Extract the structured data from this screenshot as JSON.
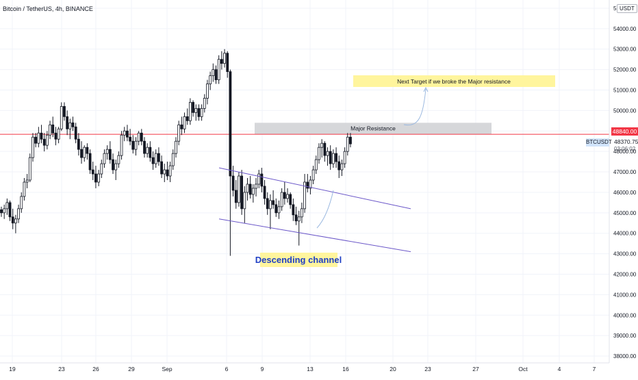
{
  "header": {
    "symbol_title": "Bitcoin / TetherUS, 4h, BINANCE",
    "currency_unit": "USDT"
  },
  "price_axis": {
    "current_price_label": "48840.00",
    "ticker": "BTCUSDT",
    "last_price": "48370.75",
    "countdown": "03:06:02"
  },
  "annotations": {
    "target_note": "Next Target if we broke the Major resistance",
    "resistance_label": "Major Resistance",
    "channel_label": "Descending channel"
  },
  "colors": {
    "candle": "#131722",
    "channel_line": "#6a56c8",
    "resistance_line": "#f23645",
    "resistance_zone": "#d6d7da",
    "note_bg": "#fff59d",
    "channel_label_bg": "#fff59d",
    "channel_label_text": "#1e3fc4",
    "arrow": "#9ab8e0"
  },
  "chart_data": {
    "type": "candlestick",
    "x_ticks": [
      "19",
      "23",
      "26",
      "29",
      "Sep",
      "6",
      "9",
      "13",
      "16",
      "20",
      "23",
      "27",
      "Oct",
      "4",
      "7"
    ],
    "y_ticks": [
      "38000.00",
      "39000.00",
      "40000.00",
      "41000.00",
      "42000.00",
      "43000.00",
      "44000.00",
      "45000.00",
      "46000.00",
      "47000.00",
      "48000.00",
      "49000.00",
      "50000.00",
      "51000.00",
      "52000.00",
      "53000.00",
      "54000.00",
      "55000.00"
    ],
    "y_range": [
      37800,
      55200
    ],
    "horizontal_line_price": 48840,
    "resistance_zone": [
      48840,
      49400
    ],
    "candles": [
      [
        45150,
        45300,
        44800,
        45000
      ],
      [
        45000,
        45400,
        44700,
        45200
      ],
      [
        45200,
        45700,
        44900,
        45500
      ],
      [
        45500,
        45600,
        44600,
        44800
      ],
      [
        44800,
        45200,
        44200,
        44500
      ],
      [
        44500,
        44900,
        44000,
        44700
      ],
      [
        44700,
        45400,
        44500,
        45200
      ],
      [
        45200,
        46000,
        45000,
        45800
      ],
      [
        45800,
        46700,
        45600,
        46500
      ],
      [
        46500,
        46900,
        46200,
        46600
      ],
      [
        46600,
        47900,
        46500,
        47700
      ],
      [
        47700,
        48900,
        47500,
        48700
      ],
      [
        48700,
        48900,
        48200,
        48400
      ],
      [
        48400,
        49200,
        48200,
        48900
      ],
      [
        48900,
        49300,
        48400,
        48600
      ],
      [
        48600,
        48900,
        48000,
        48300
      ],
      [
        48300,
        49000,
        48100,
        48800
      ],
      [
        48800,
        49500,
        48600,
        49300
      ],
      [
        49300,
        49700,
        48700,
        48900
      ],
      [
        48900,
        49200,
        48300,
        48600
      ],
      [
        48600,
        49200,
        48400,
        49100
      ],
      [
        49100,
        50400,
        49000,
        50200
      ],
      [
        50200,
        50400,
        49500,
        49700
      ],
      [
        49700,
        50000,
        48800,
        49100
      ],
      [
        49100,
        49600,
        48600,
        49400
      ],
      [
        49400,
        49700,
        49000,
        49200
      ],
      [
        49200,
        49400,
        48400,
        48600
      ],
      [
        48600,
        48900,
        47800,
        48100
      ],
      [
        48100,
        48500,
        47400,
        47700
      ],
      [
        47700,
        48300,
        47500,
        48200
      ],
      [
        48200,
        48400,
        47600,
        47900
      ],
      [
        47900,
        48100,
        46900,
        47100
      ],
      [
        47100,
        47500,
        46600,
        46900
      ],
      [
        46900,
        47300,
        46200,
        46500
      ],
      [
        46500,
        47100,
        46300,
        46900
      ],
      [
        46900,
        47600,
        46700,
        47400
      ],
      [
        47400,
        48100,
        47200,
        47900
      ],
      [
        47900,
        48300,
        47600,
        48100
      ],
      [
        48100,
        48500,
        47400,
        47600
      ],
      [
        47600,
        47900,
        46900,
        47100
      ],
      [
        47100,
        47600,
        46600,
        47400
      ],
      [
        47400,
        48000,
        47200,
        47800
      ],
      [
        47800,
        49000,
        47600,
        48800
      ],
      [
        48800,
        49200,
        48500,
        49000
      ],
      [
        49000,
        49300,
        48500,
        48700
      ],
      [
        48700,
        49100,
        48300,
        48500
      ],
      [
        48500,
        48800,
        47900,
        48100
      ],
      [
        48100,
        48700,
        47800,
        48500
      ],
      [
        48500,
        49000,
        48300,
        48900
      ],
      [
        48900,
        49100,
        48300,
        48500
      ],
      [
        48500,
        48700,
        47700,
        47900
      ],
      [
        47900,
        48400,
        47700,
        48200
      ],
      [
        48200,
        48500,
        47500,
        47700
      ],
      [
        47700,
        48000,
        47100,
        47400
      ],
      [
        47400,
        48100,
        47200,
        47900
      ],
      [
        47900,
        48200,
        47300,
        47500
      ],
      [
        47500,
        47800,
        46700,
        46900
      ],
      [
        46900,
        47400,
        46500,
        47100
      ],
      [
        47100,
        47500,
        46600,
        46800
      ],
      [
        46800,
        47500,
        46500,
        47300
      ],
      [
        47300,
        48100,
        47100,
        47900
      ],
      [
        47900,
        48700,
        47700,
        48500
      ],
      [
        48500,
        49500,
        48300,
        49300
      ],
      [
        49300,
        49700,
        48800,
        49100
      ],
      [
        49100,
        49900,
        48900,
        49700
      ],
      [
        49700,
        50100,
        49300,
        49500
      ],
      [
        49500,
        50600,
        49300,
        50400
      ],
      [
        50400,
        50500,
        49700,
        49900
      ],
      [
        49900,
        50300,
        49500,
        50100
      ],
      [
        50100,
        50300,
        49500,
        49700
      ],
      [
        49700,
        50300,
        49500,
        50100
      ],
      [
        50100,
        50800,
        49900,
        50600
      ],
      [
        50600,
        51500,
        50300,
        51300
      ],
      [
        51300,
        51900,
        51000,
        51700
      ],
      [
        51700,
        52300,
        51400,
        52000
      ],
      [
        52000,
        52200,
        51300,
        51500
      ],
      [
        51500,
        52700,
        51300,
        52500
      ],
      [
        52500,
        52900,
        52000,
        52300
      ],
      [
        52300,
        53000,
        52100,
        52800
      ],
      [
        52800,
        52900,
        51600,
        51900
      ],
      [
        51900,
        52000,
        42900,
        46800
      ],
      [
        46800,
        47300,
        45800,
        46100
      ],
      [
        46100,
        46600,
        45200,
        45500
      ],
      [
        45500,
        47000,
        45300,
        46800
      ],
      [
        46800,
        47100,
        44900,
        45200
      ],
      [
        45200,
        46300,
        44500,
        46000
      ],
      [
        46000,
        46700,
        45600,
        46400
      ],
      [
        46400,
        46800,
        45700,
        45900
      ],
      [
        45900,
        46400,
        45500,
        46200
      ],
      [
        46200,
        46700,
        45800,
        46400
      ],
      [
        46400,
        47100,
        46200,
        46900
      ],
      [
        46900,
        47200,
        46000,
        46300
      ],
      [
        46300,
        46600,
        45400,
        45700
      ],
      [
        45700,
        46000,
        44900,
        45200
      ],
      [
        45200,
        45900,
        44200,
        45600
      ],
      [
        45600,
        46100,
        45200,
        45400
      ],
      [
        45400,
        45700,
        44800,
        45000
      ],
      [
        45000,
        45600,
        44700,
        45300
      ],
      [
        45300,
        46200,
        45100,
        46000
      ],
      [
        46000,
        46500,
        45400,
        45700
      ],
      [
        45700,
        46200,
        45500,
        45900
      ],
      [
        45900,
        46000,
        45200,
        45400
      ],
      [
        45400,
        45700,
        44600,
        44900
      ],
      [
        44900,
        45300,
        44400,
        44600
      ],
      [
        44600,
        45100,
        43400,
        44800
      ],
      [
        44800,
        45500,
        44500,
        45200
      ],
      [
        45200,
        46900,
        45000,
        46500
      ],
      [
        46500,
        46900,
        46000,
        46200
      ],
      [
        46200,
        46800,
        45900,
        46600
      ],
      [
        46600,
        47300,
        46400,
        47100
      ],
      [
        47100,
        47800,
        46900,
        47600
      ],
      [
        47600,
        48400,
        47400,
        48200
      ],
      [
        48200,
        48600,
        47700,
        48400
      ],
      [
        48400,
        48500,
        47500,
        47800
      ],
      [
        47800,
        48200,
        47300,
        48000
      ],
      [
        48000,
        48300,
        47100,
        47400
      ],
      [
        47400,
        48100,
        47200,
        47900
      ],
      [
        47900,
        48200,
        47200,
        47500
      ],
      [
        47500,
        47800,
        46700,
        47100
      ],
      [
        47100,
        47600,
        46800,
        47400
      ],
      [
        47400,
        48200,
        47200,
        48000
      ],
      [
        48000,
        48900,
        47800,
        48700
      ],
      [
        48700,
        48900,
        48200,
        48370
      ]
    ],
    "channel_upper": [
      [
        9.0,
        47200
      ],
      [
        15.5,
        45200
      ]
    ],
    "channel_lower": [
      [
        9.0,
        44700
      ],
      [
        15.5,
        43100
      ]
    ]
  }
}
